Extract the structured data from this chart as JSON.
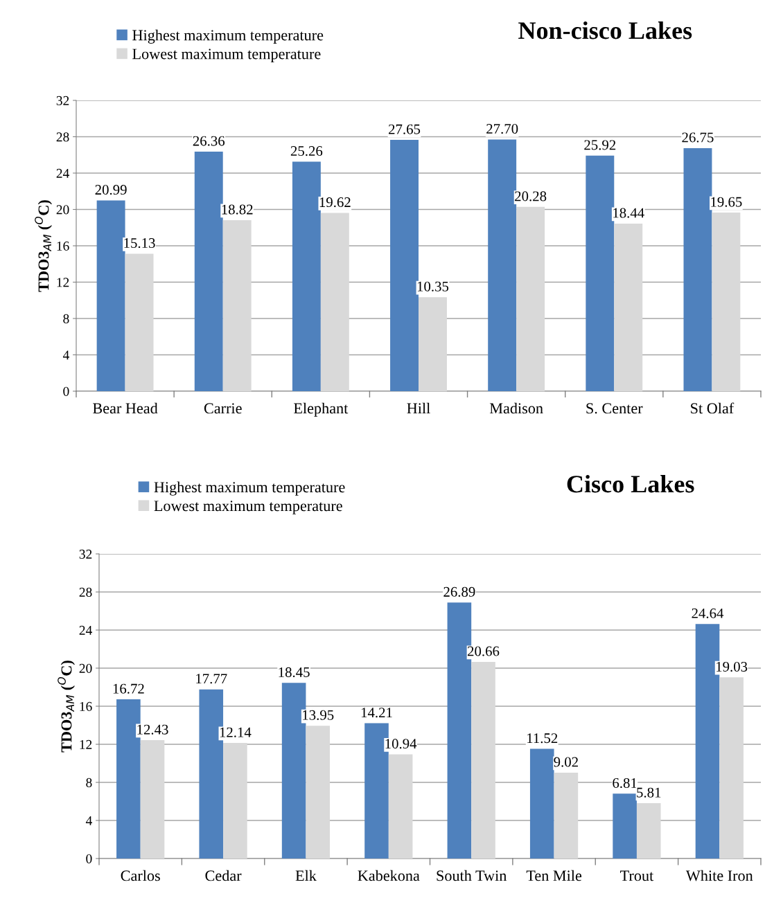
{
  "chart_data": [
    {
      "type": "bar",
      "title": "Non-cisco Lakes",
      "ylabel": "TDO3$_{AM}$ ($^{O}$C)",
      "categories": [
        "Bear Head",
        "Carrie",
        "Elephant",
        "Hill",
        "Madison",
        "S. Center",
        "St Olaf"
      ],
      "series": [
        {
          "name": "Highest maximum temperature",
          "color": "#4f81bd",
          "values": [
            20.99,
            26.36,
            25.26,
            27.65,
            27.7,
            25.92,
            26.75
          ],
          "value_labels": [
            "20.99",
            "26.36",
            "25.26",
            "27.65",
            "27.70",
            "25.92",
            "26.75"
          ]
        },
        {
          "name": "Lowest maximum temperature",
          "color": "#d9d9d9",
          "values": [
            15.13,
            18.82,
            19.62,
            10.35,
            20.28,
            18.44,
            19.65
          ],
          "value_labels": [
            "15.13",
            "18.82",
            "19.62",
            "10.35",
            "20.28",
            "18.44",
            "19.65"
          ]
        }
      ],
      "ylim": [
        0,
        32
      ],
      "yticks": [
        0,
        4,
        8,
        12,
        16,
        20,
        24,
        28,
        32
      ],
      "grid": "y",
      "legend": "top left"
    },
    {
      "type": "bar",
      "title": "Cisco Lakes",
      "ylabel": "TDO3$_{AM}$ ($^{O}$C)",
      "categories": [
        "Carlos",
        "Cedar",
        "Elk",
        "Kabekona",
        "South Twin",
        "Ten Mile",
        "Trout",
        "White Iron"
      ],
      "series": [
        {
          "name": "Highest maximum temperature",
          "color": "#4f81bd",
          "values": [
            16.72,
            17.77,
            18.45,
            14.21,
            26.89,
            11.52,
            6.81,
            24.64
          ],
          "value_labels": [
            "16.72",
            "17.77",
            "18.45",
            "14.21",
            "26.89",
            "11.52",
            "6.81",
            "24.64"
          ]
        },
        {
          "name": "Lowest maximum temperature",
          "color": "#d9d9d9",
          "values": [
            12.43,
            12.14,
            13.95,
            10.94,
            20.66,
            9.02,
            5.81,
            19.03
          ],
          "value_labels": [
            "12.43",
            "12.14",
            "13.95",
            "10.94",
            "20.66",
            "9.02",
            "5.81",
            "19.03"
          ]
        }
      ],
      "ylim": [
        0,
        32
      ],
      "yticks": [
        0,
        4,
        8,
        12,
        16,
        20,
        24,
        28,
        32
      ],
      "grid": "y",
      "legend": "top left"
    }
  ]
}
